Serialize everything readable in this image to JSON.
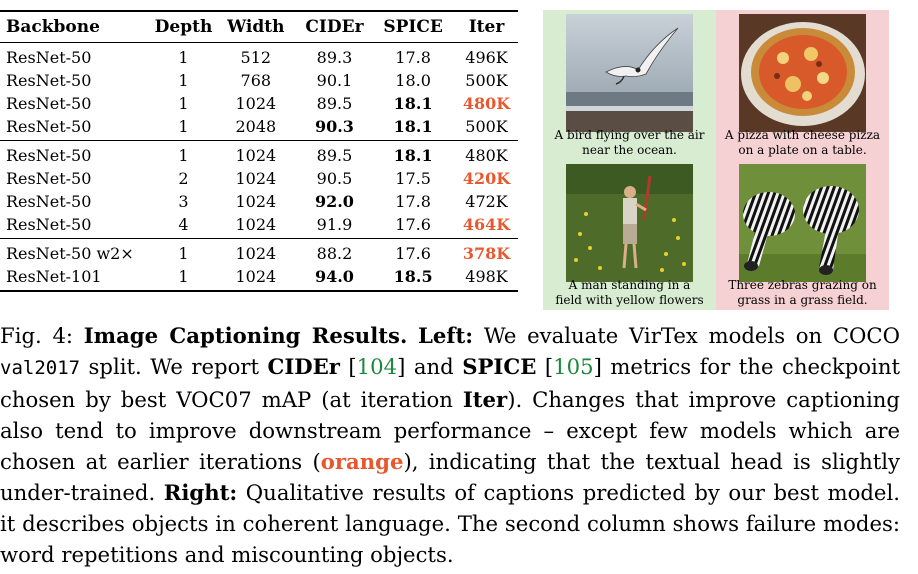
{
  "table": {
    "headers": [
      "Backbone",
      "Depth",
      "Width",
      "CIDEr",
      "SPICE",
      "Iter"
    ],
    "groups": [
      [
        {
          "backbone": "ResNet-50",
          "depth": "1",
          "width": "512",
          "cider": "89.3",
          "spice": "17.8",
          "iter": "496K"
        },
        {
          "backbone": "ResNet-50",
          "depth": "1",
          "width": "768",
          "cider": "90.1",
          "spice": "18.0",
          "iter": "500K"
        },
        {
          "backbone": "ResNet-50",
          "depth": "1",
          "width": "1024",
          "cider": "89.5",
          "spice": "18.1",
          "iter": "480K"
        },
        {
          "backbone": "ResNet-50",
          "depth": "1",
          "width": "2048",
          "cider": "90.3",
          "spice": "18.1",
          "iter": "500K"
        }
      ],
      [
        {
          "backbone": "ResNet-50",
          "depth": "1",
          "width": "1024",
          "cider": "89.5",
          "spice": "18.1",
          "iter": "480K"
        },
        {
          "backbone": "ResNet-50",
          "depth": "2",
          "width": "1024",
          "cider": "90.5",
          "spice": "17.5",
          "iter": "420K"
        },
        {
          "backbone": "ResNet-50",
          "depth": "3",
          "width": "1024",
          "cider": "92.0",
          "spice": "17.8",
          "iter": "472K"
        },
        {
          "backbone": "ResNet-50",
          "depth": "4",
          "width": "1024",
          "cider": "91.9",
          "spice": "17.6",
          "iter": "464K"
        }
      ],
      [
        {
          "backbone": "ResNet-50 w2×",
          "depth": "1",
          "width": "1024",
          "cider": "88.2",
          "spice": "17.6",
          "iter": "378K"
        },
        {
          "backbone": "ResNet-101",
          "depth": "1",
          "width": "1024",
          "cider": "94.0",
          "spice": "18.5",
          "iter": "498K"
        }
      ]
    ],
    "highlight_color": "#e8582e"
  },
  "qualitative": {
    "good_bg": "#d8ecd2",
    "bad_bg": "#f6d1d3",
    "panels": [
      {
        "caption_line1": "A bird flying over the air",
        "caption_line2": "near the ocean."
      },
      {
        "caption_line1": "A pizza with cheese pizza",
        "caption_line2": "on a plate on a table."
      },
      {
        "caption_line1": "A man standing in a",
        "caption_line2": "field with yellow flowers"
      },
      {
        "caption_line1": "Three zebras grazing on",
        "caption_line2": "grass in a grass field."
      }
    ]
  },
  "caption": {
    "fig_label": "Fig. 4: ",
    "title": "Image Captioning Results.",
    "left_label": "Left:",
    "t1": " We evaluate VirTex models on COCO ",
    "split": "val2017",
    "t2": " split. We report ",
    "cider": "CIDEr",
    "ref1": "104",
    "t3": " and ",
    "spice": "SPICE",
    "ref2": "105",
    "t4": " metrics for the checkpoint chosen by best VOC07 mAP (at iteration ",
    "iter": "Iter",
    "t5": "). Changes that improve captioning also tend to improve downstream performance – except few models which are chosen at earlier iterations (",
    "orange": "orange",
    "t6": "), indicating that the textual head is slightly under-trained. ",
    "right_label": "Right:",
    "t7": " Qualitative results of captions predicted by our best model. it describes objects in coherent language. The second column shows failure modes: word repetitions and miscounting objects."
  }
}
